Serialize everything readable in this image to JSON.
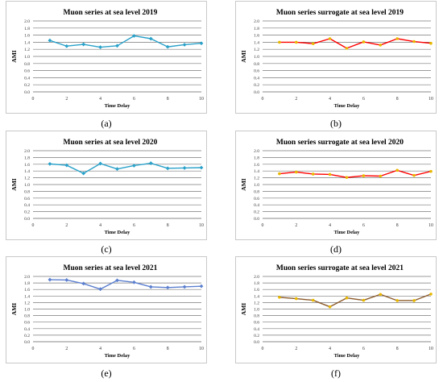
{
  "chart_data": [
    {
      "type": "line",
      "title": "Muon series at sea level 2019",
      "xlabel": "Time Delay",
      "ylabel": "AMI",
      "ylim": [
        0,
        2
      ],
      "yticks": [
        "0.0",
        "0.2",
        "0.4",
        "0.6",
        "0.8",
        "1.0",
        "1.2",
        "1.4",
        "1.6",
        "1.8",
        "2.0"
      ],
      "xlim": [
        0,
        10
      ],
      "xticks": [
        "0",
        "2",
        "4",
        "6",
        "8",
        "10"
      ],
      "grid": "horizontal",
      "line_color": "#2aa1c9",
      "marker_color": "#2aa1c9",
      "marker": "diamond",
      "x": [
        1,
        2,
        3,
        4,
        5,
        6,
        7,
        8,
        9,
        10
      ],
      "values": [
        1.45,
        1.29,
        1.34,
        1.26,
        1.3,
        1.58,
        1.5,
        1.27,
        1.33,
        1.37
      ],
      "caption": "(a)"
    },
    {
      "type": "line",
      "title": "Muon series surrogate at sea level 2019",
      "xlabel": "Time Delay",
      "ylabel": "AMI",
      "ylim": [
        0,
        2
      ],
      "yticks": [
        "0.0",
        "0.2",
        "0.4",
        "0.6",
        "0.8",
        "1.0",
        "1.2",
        "1.4",
        "1.6",
        "1.8",
        "2.0"
      ],
      "xlim": [
        0,
        10
      ],
      "xticks": [
        "0",
        "2",
        "4",
        "6",
        "8",
        "10"
      ],
      "grid": "horizontal",
      "line_color": "#ff0000",
      "marker_color": "#e8b800",
      "marker": "circle",
      "x": [
        1,
        2,
        3,
        4,
        5,
        6,
        7,
        8,
        9,
        10
      ],
      "values": [
        1.4,
        1.4,
        1.36,
        1.5,
        1.23,
        1.41,
        1.32,
        1.5,
        1.42,
        1.37
      ],
      "caption": "(b)"
    },
    {
      "type": "line",
      "title": "Muon series at sea level 2020",
      "xlabel": "Time Delay",
      "ylabel": "AMI",
      "ylim": [
        0,
        2
      ],
      "yticks": [
        "0.0",
        "0.2",
        "0.4",
        "0.6",
        "0.8",
        "1.0",
        "1.2",
        "1.4",
        "1.6",
        "1.8",
        "2.0"
      ],
      "xlim": [
        0,
        10
      ],
      "xticks": [
        "0",
        "2",
        "4",
        "6",
        "8",
        "10"
      ],
      "grid": "horizontal",
      "line_color": "#2aa1c9",
      "marker_color": "#2aa1c9",
      "marker": "diamond",
      "x": [
        1,
        2,
        3,
        4,
        5,
        6,
        7,
        8,
        9,
        10
      ],
      "values": [
        1.61,
        1.57,
        1.33,
        1.62,
        1.46,
        1.56,
        1.63,
        1.48,
        1.49,
        1.5
      ],
      "caption": "(c)"
    },
    {
      "type": "line",
      "title": "Muon series surrogate at sea level 2020",
      "xlabel": "Time Delay",
      "ylabel": "AMI",
      "ylim": [
        0,
        2
      ],
      "yticks": [
        "0.0",
        "0.2",
        "0.4",
        "0.6",
        "0.8",
        "1.0",
        "1.2",
        "1.4",
        "1.6",
        "1.8",
        "2.0"
      ],
      "xlim": [
        0,
        10
      ],
      "xticks": [
        "0",
        "2",
        "4",
        "6",
        "8",
        "10"
      ],
      "grid": "horizontal",
      "line_color": "#ff0000",
      "marker_color": "#e8b800",
      "marker": "circle",
      "x": [
        1,
        2,
        3,
        4,
        5,
        6,
        7,
        8,
        9,
        10
      ],
      "values": [
        1.32,
        1.37,
        1.31,
        1.3,
        1.21,
        1.26,
        1.25,
        1.42,
        1.27,
        1.39
      ],
      "caption": "(d)"
    },
    {
      "type": "line",
      "title": "Muon series at sea level 2021",
      "xlabel": "Time Delay",
      "ylabel": "AMI",
      "ylim": [
        0,
        2
      ],
      "yticks": [
        "0.0",
        "0.2",
        "0.4",
        "0.6",
        "0.8",
        "1.0",
        "1.2",
        "1.4",
        "1.6",
        "1.8",
        "2.0"
      ],
      "xlim": [
        0,
        10
      ],
      "xticks": [
        "0",
        "2",
        "4",
        "6",
        "8",
        "10"
      ],
      "grid": "horizontal",
      "line_color": "#5b7fcf",
      "marker_color": "#5b7fcf",
      "marker": "diamond",
      "x": [
        1,
        2,
        3,
        4,
        5,
        6,
        7,
        8,
        9,
        10
      ],
      "values": [
        1.9,
        1.89,
        1.78,
        1.61,
        1.88,
        1.82,
        1.68,
        1.66,
        1.68,
        1.7
      ],
      "caption": "(e)"
    },
    {
      "type": "line",
      "title": "Muon series surrogate at sea level 2021",
      "xlabel": "Time Delay",
      "ylabel": "AMI",
      "ylim": [
        0,
        2
      ],
      "yticks": [
        "0.0",
        "0.2",
        "0.4",
        "0.6",
        "0.8",
        "1.0",
        "1.2",
        "1.4",
        "1.6",
        "1.8",
        "2.0"
      ],
      "xlim": [
        0,
        10
      ],
      "xticks": [
        "0",
        "2",
        "4",
        "6",
        "8",
        "10"
      ],
      "grid": "horizontal",
      "line_color": "#8b5a2b",
      "marker_color": "#e8b800",
      "marker": "circle",
      "x": [
        1,
        2,
        3,
        4,
        5,
        6,
        7,
        8,
        9,
        10
      ],
      "values": [
        1.36,
        1.32,
        1.27,
        1.07,
        1.34,
        1.27,
        1.45,
        1.26,
        1.26,
        1.46
      ],
      "caption": "(f)"
    }
  ]
}
